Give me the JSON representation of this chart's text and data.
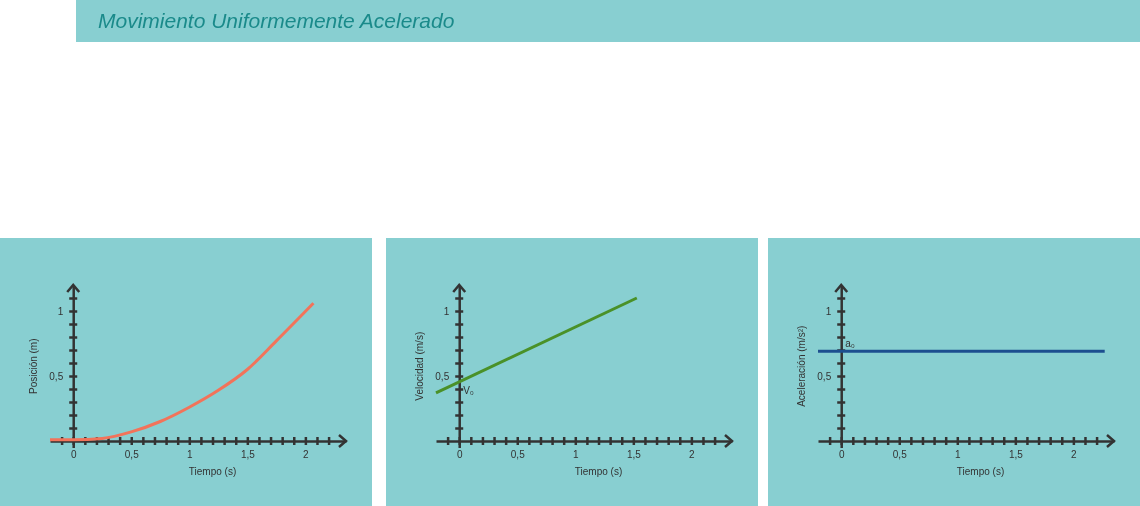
{
  "chart_data": [
    {
      "type": "line",
      "title": "Movimiento Uniformemente Acelerado",
      "xlabel": "Tiempo (s)",
      "ylabel": "Posición (m)",
      "x": [
        -0.2,
        0,
        0.25,
        0.5,
        0.75,
        1,
        1.25,
        1.5,
        1.75,
        2.07
      ],
      "series": [
        {
          "color": "#f2735a",
          "values": [
            0.01,
            0.01,
            0.02,
            0.07,
            0.15,
            0.26,
            0.39,
            0.55,
            0.77,
            1.06
          ]
        }
      ],
      "xlim": [
        -0.2,
        2.35
      ],
      "ylim": [
        -0.05,
        1.2
      ],
      "xticks": [
        {
          "value": -0.1,
          "label": null
        },
        {
          "value": 0,
          "label": "0"
        },
        {
          "value": 0.1,
          "label": null
        },
        {
          "value": 0.2,
          "label": null
        },
        {
          "value": 0.3,
          "label": null
        },
        {
          "value": 0.4,
          "label": null
        },
        {
          "value": 0.5,
          "label": "0,5"
        },
        {
          "value": 0.6,
          "label": null
        },
        {
          "value": 0.7,
          "label": null
        },
        {
          "value": 0.8,
          "label": null
        },
        {
          "value": 0.9,
          "label": null
        },
        {
          "value": 1,
          "label": "1"
        },
        {
          "value": 1.1,
          "label": null
        },
        {
          "value": 1.2,
          "label": null
        },
        {
          "value": 1.3,
          "label": null
        },
        {
          "value": 1.4,
          "label": null
        },
        {
          "value": 1.5,
          "label": "1,5"
        },
        {
          "value": 1.6,
          "label": null
        },
        {
          "value": 1.7,
          "label": null
        },
        {
          "value": 1.8,
          "label": null
        },
        {
          "value": 1.9,
          "label": null
        },
        {
          "value": 2,
          "label": "2"
        },
        {
          "value": 2.1,
          "label": null
        },
        {
          "value": 2.2,
          "label": null
        }
      ],
      "yticks": [
        {
          "value": 0.1,
          "label": null
        },
        {
          "value": 0.2,
          "label": null
        },
        {
          "value": 0.3,
          "label": null
        },
        {
          "value": 0.4,
          "label": null
        },
        {
          "value": 0.5,
          "label": "0,5"
        },
        {
          "value": 0.6,
          "label": null
        },
        {
          "value": 0.7,
          "label": null
        },
        {
          "value": 0.8,
          "label": null
        },
        {
          "value": 0.9,
          "label": null
        },
        {
          "value": 1,
          "label": "1"
        },
        {
          "value": 1.1,
          "label": null
        }
      ]
    },
    {
      "type": "line",
      "xlabel": "Tiempo (s)",
      "ylabel": "Velocidad (m/s)",
      "x": [
        -0.2,
        1.53
      ],
      "series": [
        {
          "color": "#4a9128",
          "values": [
            0.37,
            1.1
          ]
        }
      ],
      "annotations": [
        {
          "text": "V₀",
          "x": 0,
          "y": 0.42
        }
      ],
      "xlim": [
        -0.2,
        2.35
      ],
      "ylim": [
        -0.05,
        1.2
      ],
      "xticks": [
        {
          "value": -0.1,
          "label": null
        },
        {
          "value": 0,
          "label": "0"
        },
        {
          "value": 0.1,
          "label": null
        },
        {
          "value": 0.2,
          "label": null
        },
        {
          "value": 0.3,
          "label": null
        },
        {
          "value": 0.4,
          "label": null
        },
        {
          "value": 0.5,
          "label": "0,5"
        },
        {
          "value": 0.6,
          "label": null
        },
        {
          "value": 0.7,
          "label": null
        },
        {
          "value": 0.8,
          "label": null
        },
        {
          "value": 0.9,
          "label": null
        },
        {
          "value": 1,
          "label": "1"
        },
        {
          "value": 1.1,
          "label": null
        },
        {
          "value": 1.2,
          "label": null
        },
        {
          "value": 1.3,
          "label": null
        },
        {
          "value": 1.4,
          "label": null
        },
        {
          "value": 1.5,
          "label": "1,5"
        },
        {
          "value": 1.6,
          "label": null
        },
        {
          "value": 1.7,
          "label": null
        },
        {
          "value": 1.8,
          "label": null
        },
        {
          "value": 1.9,
          "label": null
        },
        {
          "value": 2,
          "label": "2"
        },
        {
          "value": 2.1,
          "label": null
        },
        {
          "value": 2.2,
          "label": null
        }
      ],
      "yticks": [
        {
          "value": 0.1,
          "label": null
        },
        {
          "value": 0.2,
          "label": null
        },
        {
          "value": 0.3,
          "label": null
        },
        {
          "value": 0.4,
          "label": null
        },
        {
          "value": 0.5,
          "label": "0,5"
        },
        {
          "value": 0.6,
          "label": null
        },
        {
          "value": 0.7,
          "label": null
        },
        {
          "value": 0.8,
          "label": null
        },
        {
          "value": 0.9,
          "label": null
        },
        {
          "value": 1,
          "label": "1"
        },
        {
          "value": 1.1,
          "label": null
        }
      ]
    },
    {
      "type": "line",
      "xlabel": "Tiempo (s)",
      "ylabel": "Aceleración (m/s²)",
      "x": [
        -0.2,
        2.27
      ],
      "series": [
        {
          "color": "#1d4f8f",
          "values": [
            0.69,
            0.69
          ]
        }
      ],
      "annotations": [
        {
          "text": "a₀",
          "x": 0,
          "y": 0.69
        }
      ],
      "xlim": [
        -0.2,
        2.35
      ],
      "ylim": [
        -0.05,
        1.2
      ],
      "xticks": [
        {
          "value": -0.1,
          "label": null
        },
        {
          "value": 0,
          "label": "0"
        },
        {
          "value": 0.1,
          "label": null
        },
        {
          "value": 0.2,
          "label": null
        },
        {
          "value": 0.3,
          "label": null
        },
        {
          "value": 0.4,
          "label": null
        },
        {
          "value": 0.5,
          "label": "0,5"
        },
        {
          "value": 0.6,
          "label": null
        },
        {
          "value": 0.7,
          "label": null
        },
        {
          "value": 0.8,
          "label": null
        },
        {
          "value": 0.9,
          "label": null
        },
        {
          "value": 1,
          "label": "1"
        },
        {
          "value": 1.1,
          "label": null
        },
        {
          "value": 1.2,
          "label": null
        },
        {
          "value": 1.3,
          "label": null
        },
        {
          "value": 1.4,
          "label": null
        },
        {
          "value": 1.5,
          "label": "1,5"
        },
        {
          "value": 1.6,
          "label": null
        },
        {
          "value": 1.7,
          "label": null
        },
        {
          "value": 1.8,
          "label": null
        },
        {
          "value": 1.9,
          "label": null
        },
        {
          "value": 2,
          "label": "2"
        },
        {
          "value": 2.1,
          "label": null
        },
        {
          "value": 2.2,
          "label": null
        }
      ],
      "yticks": [
        {
          "value": 0.1,
          "label": null
        },
        {
          "value": 0.2,
          "label": null
        },
        {
          "value": 0.3,
          "label": null
        },
        {
          "value": 0.4,
          "label": null
        },
        {
          "value": 0.5,
          "label": "0,5"
        },
        {
          "value": 0.6,
          "label": null
        },
        {
          "value": 0.7,
          "label": null
        },
        {
          "value": 0.8,
          "label": null
        },
        {
          "value": 0.9,
          "label": null
        },
        {
          "value": 1,
          "label": "1"
        },
        {
          "value": 1.1,
          "label": null
        }
      ]
    }
  ]
}
